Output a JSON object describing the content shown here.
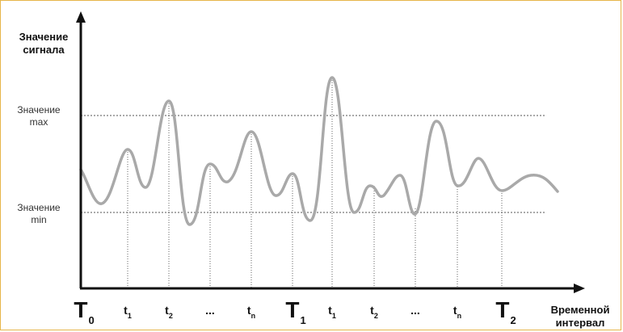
{
  "axis": {
    "y_label_line1": "Значение",
    "y_label_line2": "сигнала",
    "x_label_line1": "Временной",
    "x_label_line2": "интервал"
  },
  "levels": {
    "max_line1": "Значение",
    "max_line2": "max",
    "min_line1": "Значение",
    "min_line2": "min"
  },
  "ticks": [
    {
      "main": "T",
      "sub": "0",
      "size": "big"
    },
    {
      "main": "t",
      "sub": "1",
      "size": "small"
    },
    {
      "main": "t",
      "sub": "2",
      "size": "small"
    },
    {
      "main": "...",
      "sub": "",
      "size": "small"
    },
    {
      "main": "t",
      "sub": "n",
      "size": "small"
    },
    {
      "main": "T",
      "sub": "1",
      "size": "big"
    },
    {
      "main": "t",
      "sub": "1",
      "size": "small"
    },
    {
      "main": "t",
      "sub": "2",
      "size": "small"
    },
    {
      "main": "...",
      "sub": "",
      "size": "small"
    },
    {
      "main": "t",
      "sub": "n",
      "size": "small"
    },
    {
      "main": "T",
      "sub": "2",
      "size": "big"
    }
  ],
  "colors": {
    "frame": "#e6b64a",
    "signal": "#a9a9a9",
    "axis": "#111111",
    "grid": "#555555"
  }
}
